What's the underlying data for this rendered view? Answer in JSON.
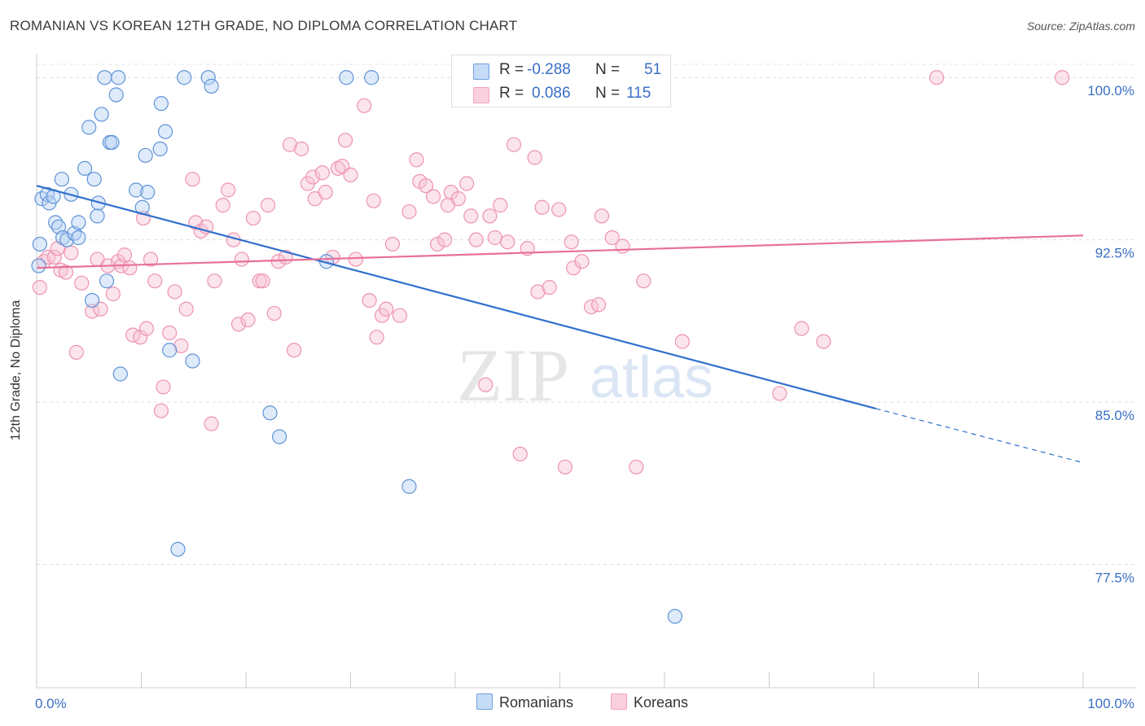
{
  "title": "ROMANIAN VS KOREAN 12TH GRADE, NO DIPLOMA CORRELATION CHART",
  "source": "Source: ZipAtlas.com",
  "watermark": {
    "zip": "ZIP",
    "atlas": "atlas"
  },
  "legend": {
    "rows": [
      {
        "r_label": "R =",
        "r_value": "-0.288",
        "n_label": "N =",
        "n_value": "51",
        "color": "#a9c8f0"
      },
      {
        "r_label": "R =",
        "r_value": "0.086",
        "n_label": "N =",
        "n_value": "115",
        "color": "#f7b8cb"
      }
    ]
  },
  "bottom_legend": [
    {
      "label": "Romanians",
      "color": "#a9c8f0"
    },
    {
      "label": "Koreans",
      "color": "#f7b8cb"
    }
  ],
  "chart_data": {
    "type": "scatter",
    "title": "ROMANIAN VS KOREAN 12TH GRADE, NO DIPLOMA CORRELATION CHART",
    "xlabel": "",
    "ylabel": "12th Grade, No Diploma",
    "xlim": [
      0,
      100
    ],
    "ylim": [
      71.8,
      101.1
    ],
    "x_tick_labels": [
      "0.0%",
      "100.0%"
    ],
    "y_ticks": [
      77.5,
      85.0,
      92.5,
      100.0
    ],
    "y_tick_labels": [
      "77.5%",
      "85.0%",
      "92.5%",
      "100.0%"
    ],
    "grid": "horizontal dashed",
    "legend_position": "top-center",
    "series": [
      {
        "name": "Romanians",
        "color": "#6fa0e0",
        "trend": {
          "x": [
            0,
            80.2
          ],
          "y": [
            95.0,
            84.7
          ],
          "dashed_extension_to": [
            100,
            82.2
          ],
          "color": "#2f6fcc"
        },
        "points": [
          [
            0.3,
            92.3
          ],
          [
            0.5,
            94.4
          ],
          [
            1.0,
            94.6
          ],
          [
            1.2,
            94.2
          ],
          [
            1.6,
            94.5
          ],
          [
            1.8,
            93.3
          ],
          [
            2.1,
            93.1
          ],
          [
            2.5,
            92.6
          ],
          [
            2.9,
            92.5
          ],
          [
            3.3,
            94.6
          ],
          [
            3.6,
            92.8
          ],
          [
            4.0,
            92.6
          ],
          [
            4.0,
            93.3
          ],
          [
            2.4,
            95.3
          ],
          [
            4.6,
            95.8
          ],
          [
            5.0,
            97.7
          ],
          [
            5.3,
            89.7
          ],
          [
            5.5,
            95.3
          ],
          [
            5.8,
            93.6
          ],
          [
            5.9,
            94.2
          ],
          [
            6.2,
            98.3
          ],
          [
            6.5,
            100.0
          ],
          [
            6.7,
            90.6
          ],
          [
            7.0,
            97.0
          ],
          [
            7.2,
            97.0
          ],
          [
            7.6,
            99.2
          ],
          [
            7.8,
            100.0
          ],
          [
            8.0,
            86.3
          ],
          [
            9.5,
            94.8
          ],
          [
            10.1,
            94.0
          ],
          [
            10.4,
            96.4
          ],
          [
            10.6,
            94.7
          ],
          [
            11.8,
            96.7
          ],
          [
            11.9,
            98.8
          ],
          [
            12.3,
            97.5
          ],
          [
            12.7,
            87.4
          ],
          [
            13.5,
            78.2
          ],
          [
            14.1,
            100.0
          ],
          [
            14.9,
            86.9
          ],
          [
            16.4,
            100.0
          ],
          [
            16.7,
            99.6
          ],
          [
            22.3,
            84.5
          ],
          [
            23.2,
            83.4
          ],
          [
            27.7,
            91.5
          ],
          [
            29.6,
            100.0
          ],
          [
            32.0,
            100.0
          ],
          [
            35.6,
            81.1
          ],
          [
            53.7,
            100.0
          ],
          [
            55.0,
            100.0
          ],
          [
            61.0,
            75.1
          ],
          [
            0.2,
            91.3
          ]
        ]
      },
      {
        "name": "Koreans",
        "color": "#f3a4bd",
        "trend": {
          "x": [
            0,
            100
          ],
          "y": [
            91.2,
            92.7
          ],
          "color": "#e8709a"
        },
        "points": [
          [
            0.3,
            90.3
          ],
          [
            0.7,
            91.5
          ],
          [
            1.1,
            91.7
          ],
          [
            1.7,
            91.7
          ],
          [
            2.0,
            92.1
          ],
          [
            2.3,
            91.1
          ],
          [
            2.8,
            91.0
          ],
          [
            3.3,
            91.9
          ],
          [
            3.8,
            87.3
          ],
          [
            4.3,
            90.5
          ],
          [
            5.3,
            89.2
          ],
          [
            5.8,
            91.6
          ],
          [
            6.1,
            89.3
          ],
          [
            6.8,
            91.3
          ],
          [
            7.3,
            90.0
          ],
          [
            7.8,
            91.5
          ],
          [
            8.1,
            91.3
          ],
          [
            8.4,
            91.8
          ],
          [
            8.9,
            91.2
          ],
          [
            9.2,
            88.1
          ],
          [
            9.9,
            88.0
          ],
          [
            10.2,
            93.5
          ],
          [
            10.5,
            88.4
          ],
          [
            10.9,
            91.6
          ],
          [
            11.3,
            90.6
          ],
          [
            11.9,
            84.6
          ],
          [
            12.1,
            85.7
          ],
          [
            12.7,
            88.2
          ],
          [
            13.2,
            90.1
          ],
          [
            13.8,
            87.6
          ],
          [
            14.3,
            89.3
          ],
          [
            14.9,
            95.3
          ],
          [
            15.2,
            93.3
          ],
          [
            15.7,
            92.9
          ],
          [
            16.2,
            93.1
          ],
          [
            16.7,
            84.0
          ],
          [
            17.0,
            90.6
          ],
          [
            17.8,
            94.1
          ],
          [
            18.3,
            94.8
          ],
          [
            18.8,
            92.5
          ],
          [
            19.3,
            88.6
          ],
          [
            19.6,
            91.6
          ],
          [
            20.2,
            88.8
          ],
          [
            20.7,
            93.5
          ],
          [
            21.3,
            90.6
          ],
          [
            21.6,
            90.6
          ],
          [
            22.1,
            94.1
          ],
          [
            22.7,
            89.1
          ],
          [
            23.1,
            91.5
          ],
          [
            23.8,
            91.7
          ],
          [
            24.2,
            96.9
          ],
          [
            24.6,
            87.4
          ],
          [
            25.3,
            96.7
          ],
          [
            25.9,
            95.1
          ],
          [
            26.4,
            95.4
          ],
          [
            26.6,
            94.4
          ],
          [
            27.3,
            95.6
          ],
          [
            27.6,
            94.7
          ],
          [
            28.3,
            91.7
          ],
          [
            28.8,
            95.8
          ],
          [
            29.2,
            95.9
          ],
          [
            29.5,
            97.1
          ],
          [
            30.0,
            95.5
          ],
          [
            30.5,
            91.6
          ],
          [
            31.3,
            98.7
          ],
          [
            31.8,
            89.7
          ],
          [
            32.2,
            94.3
          ],
          [
            32.5,
            88.0
          ],
          [
            33.0,
            89.0
          ],
          [
            33.4,
            89.3
          ],
          [
            34.0,
            92.3
          ],
          [
            34.7,
            89.0
          ],
          [
            35.6,
            93.8
          ],
          [
            36.3,
            96.2
          ],
          [
            36.6,
            95.2
          ],
          [
            37.2,
            95.0
          ],
          [
            37.9,
            94.5
          ],
          [
            38.3,
            92.3
          ],
          [
            39.0,
            92.5
          ],
          [
            39.3,
            94.1
          ],
          [
            39.6,
            94.7
          ],
          [
            40.3,
            94.4
          ],
          [
            41.1,
            95.1
          ],
          [
            41.5,
            93.6
          ],
          [
            42.0,
            92.5
          ],
          [
            42.9,
            85.8
          ],
          [
            43.3,
            93.6
          ],
          [
            43.8,
            92.6
          ],
          [
            44.3,
            94.1
          ],
          [
            45.0,
            92.4
          ],
          [
            45.6,
            96.9
          ],
          [
            46.2,
            82.6
          ],
          [
            46.9,
            92.1
          ],
          [
            47.6,
            96.3
          ],
          [
            47.9,
            90.1
          ],
          [
            48.3,
            94.0
          ],
          [
            49.0,
            90.3
          ],
          [
            49.9,
            93.9
          ],
          [
            50.5,
            82.0
          ],
          [
            51.1,
            92.4
          ],
          [
            51.3,
            91.2
          ],
          [
            52.1,
            91.5
          ],
          [
            53.0,
            89.4
          ],
          [
            53.7,
            89.5
          ],
          [
            54.0,
            93.6
          ],
          [
            55.0,
            92.6
          ],
          [
            56.0,
            92.2
          ],
          [
            57.3,
            82.0
          ],
          [
            58.0,
            90.6
          ],
          [
            61.7,
            87.8
          ],
          [
            71.0,
            85.4
          ],
          [
            73.1,
            88.4
          ],
          [
            75.2,
            87.8
          ],
          [
            86.0,
            100.0
          ],
          [
            98.0,
            100.0
          ]
        ]
      }
    ]
  }
}
